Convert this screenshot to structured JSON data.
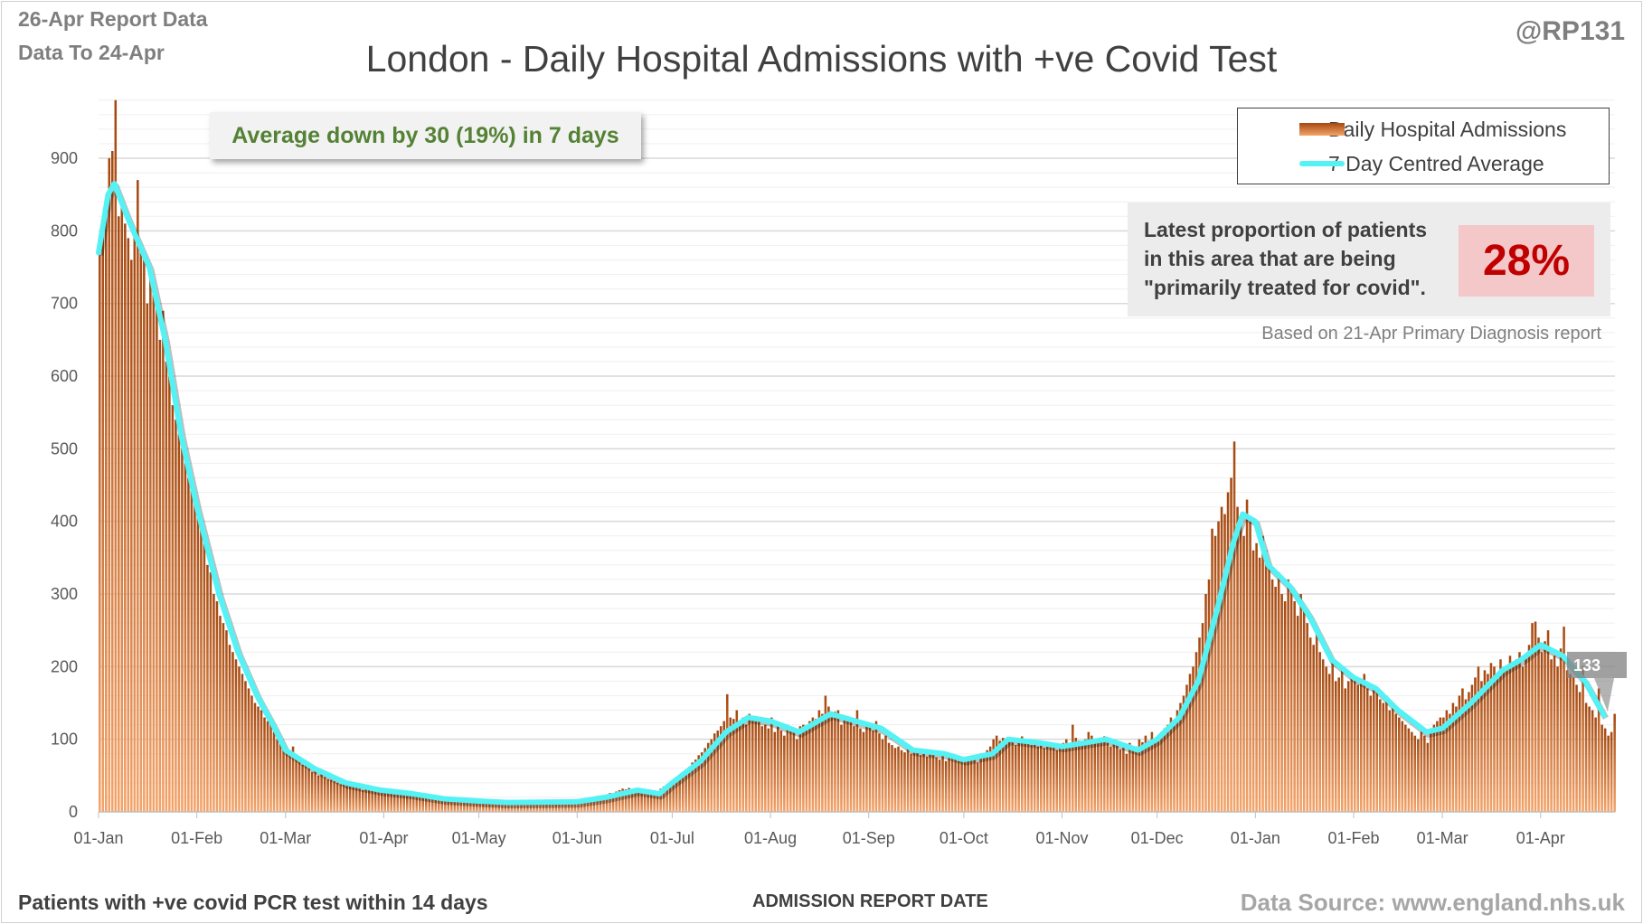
{
  "header": {
    "report_line": "26-Apr Report Data",
    "data_line": "Data To 24-Apr",
    "handle": "@RP131"
  },
  "avg_callout": "Average down by 30 (19%) in 7 days",
  "proportion": {
    "text": "Latest proportion of patients in this area that are being \"primarily treated for covid\".",
    "value": "28%",
    "note": "Based on 21-Apr Primary Diagnosis report"
  },
  "footer": {
    "left": "Patients with +ve covid PCR test within 14 days",
    "source": "Data Source: www.england.nhs.uk"
  },
  "colors": {
    "bars_top": "#a5480f",
    "bars_bottom": "#f4a46a",
    "average_line": "#55f2f5",
    "callout_text": "#548235",
    "percent_text": "#c00000",
    "percent_bg": "#f4c7c9"
  },
  "chart_data": {
    "type": "bar",
    "title": "London - Daily Hospital Admissions with +ve Covid Test",
    "xlabel": "ADMISSION  REPORT DATE",
    "ylabel": "",
    "ylim": [
      0,
      980
    ],
    "yticks": [
      0,
      100,
      200,
      300,
      400,
      500,
      600,
      700,
      800,
      900
    ],
    "grid": true,
    "legend_placement": "top-right",
    "x_start": "2021-01-01",
    "x_end": "2022-04-24",
    "xticks": [
      {
        "date": "2021-01-01",
        "label": "01-Jan"
      },
      {
        "date": "2021-02-01",
        "label": "01-Feb"
      },
      {
        "date": "2021-03-01",
        "label": "01-Mar"
      },
      {
        "date": "2021-04-01",
        "label": "01-Apr"
      },
      {
        "date": "2021-05-01",
        "label": "01-May"
      },
      {
        "date": "2021-06-01",
        "label": "01-Jun"
      },
      {
        "date": "2021-07-01",
        "label": "01-Jul"
      },
      {
        "date": "2021-08-01",
        "label": "01-Aug"
      },
      {
        "date": "2021-09-01",
        "label": "01-Sep"
      },
      {
        "date": "2021-10-01",
        "label": "01-Oct"
      },
      {
        "date": "2021-11-01",
        "label": "01-Nov"
      },
      {
        "date": "2021-12-01",
        "label": "01-Dec"
      },
      {
        "date": "2022-01-01",
        "label": "01-Jan"
      },
      {
        "date": "2022-02-01",
        "label": "01-Feb"
      },
      {
        "date": "2022-03-01",
        "label": "01-Mar"
      },
      {
        "date": "2022-04-01",
        "label": "01-Apr"
      }
    ],
    "series": [
      {
        "name": "Daily Hospital Admissions",
        "kind": "bar",
        "start_date": "2021-01-01",
        "values": [
          780,
          800,
          840,
          900,
          910,
          980,
          820,
          840,
          810,
          790,
          760,
          800,
          870,
          780,
          760,
          700,
          740,
          730,
          700,
          650,
          690,
          620,
          600,
          560,
          540,
          520,
          500,
          480,
          460,
          450,
          430,
          420,
          390,
          370,
          340,
          330,
          300,
          290,
          270,
          260,
          250,
          230,
          220,
          210,
          200,
          190,
          180,
          170,
          160,
          150,
          145,
          140,
          130,
          125,
          120,
          110,
          100,
          95,
          90,
          85,
          80,
          90,
          75,
          70,
          65,
          70,
          60,
          55,
          58,
          50,
          52,
          48,
          45,
          44,
          42,
          40,
          38,
          40,
          36,
          35,
          34,
          33,
          32,
          30,
          31,
          30,
          29,
          28,
          30,
          27,
          26,
          28,
          25,
          24,
          27,
          25,
          24,
          22,
          23,
          26,
          21,
          22,
          20,
          19,
          21,
          20,
          18,
          19,
          17,
          18,
          16,
          17,
          15,
          16,
          17,
          15,
          14,
          16,
          15,
          14,
          15,
          13,
          14,
          12,
          13,
          14,
          12,
          13,
          11,
          12,
          13,
          14,
          12,
          13,
          14,
          13,
          12,
          14,
          13,
          15,
          14,
          13,
          14,
          15,
          13,
          14,
          16,
          15,
          14,
          16,
          17,
          16,
          18,
          17,
          19,
          18,
          20,
          22,
          21,
          23,
          24,
          26,
          25,
          28,
          30,
          32,
          31,
          33,
          30,
          29,
          28,
          27,
          30,
          26,
          25,
          27,
          28,
          32,
          35,
          38,
          40,
          42,
          45,
          50,
          55,
          58,
          62,
          68,
          72,
          78,
          82,
          88,
          95,
          100,
          108,
          112,
          118,
          125,
          162,
          130,
          128,
          140,
          125,
          130,
          120,
          135,
          128,
          132,
          125,
          118,
          120,
          115,
          130,
          110,
          118,
          112,
          105,
          120,
          115,
          110,
          100,
          118,
          120,
          112,
          125,
          130,
          128,
          140,
          135,
          160,
          145,
          130,
          138,
          140,
          120,
          132,
          128,
          125,
          118,
          140,
          115,
          110,
          120,
          118,
          112,
          125,
          108,
          100,
          105,
          95,
          92,
          88,
          90,
          85,
          82,
          88,
          80,
          85,
          82,
          78,
          80,
          76,
          84,
          80,
          75,
          72,
          78,
          70,
          74,
          80,
          72,
          70,
          75,
          72,
          70,
          76,
          74,
          68,
          80,
          78,
          85,
          90,
          100,
          105,
          98,
          102,
          95,
          100,
          98,
          92,
          96,
          104,
          95,
          100,
          92,
          98,
          90,
          95,
          88,
          92,
          96,
          90,
          85,
          92,
          95,
          100,
          88,
          120,
          102,
          98,
          95,
          100,
          110,
          105,
          96,
          100,
          98,
          104,
          95,
          90,
          100,
          92,
          86,
          90,
          80,
          95,
          85,
          90,
          100,
          96,
          105,
          98,
          110,
          100,
          105,
          110,
          115,
          120,
          130,
          125,
          140,
          150,
          160,
          175,
          190,
          200,
          220,
          240,
          260,
          300,
          320,
          390,
          380,
          400,
          420,
          410,
          440,
          460,
          510,
          420,
          400,
          380,
          430,
          400,
          360,
          370,
          350,
          380,
          360,
          340,
          320,
          310,
          330,
          300,
          290,
          320,
          310,
          290,
          270,
          300,
          280,
          260,
          240,
          230,
          250,
          220,
          210,
          200,
          190,
          210,
          180,
          185,
          200,
          170,
          180,
          190,
          185,
          175,
          180,
          190,
          170,
          160,
          175,
          165,
          155,
          150,
          160,
          140,
          145,
          135,
          130,
          125,
          120,
          115,
          110,
          105,
          100,
          110,
          105,
          95,
          115,
          120,
          125,
          130,
          130,
          140,
          135,
          150,
          145,
          160,
          170,
          155,
          165,
          175,
          185,
          200,
          180,
          195,
          190,
          205,
          200,
          185,
          210,
          195,
          200,
          215,
          205,
          210,
          220,
          200,
          215,
          230,
          260,
          262,
          240,
          220,
          235,
          250,
          210,
          215,
          200,
          225,
          255,
          195,
          190,
          185,
          175,
          165,
          200,
          150,
          145,
          140,
          130,
          170,
          120,
          115,
          105,
          110,
          135
        ]
      },
      {
        "name": "7 Day Centred Average",
        "kind": "line",
        "points": [
          [
            "2021-01-01",
            770
          ],
          [
            "2021-01-04",
            850
          ],
          [
            "2021-01-06",
            865
          ],
          [
            "2021-01-10",
            820
          ],
          [
            "2021-01-17",
            750
          ],
          [
            "2021-01-22",
            650
          ],
          [
            "2021-01-27",
            520
          ],
          [
            "2021-02-01",
            420
          ],
          [
            "2021-02-08",
            300
          ],
          [
            "2021-02-14",
            220
          ],
          [
            "2021-02-20",
            160
          ],
          [
            "2021-02-25",
            120
          ],
          [
            "2021-03-01",
            85
          ],
          [
            "2021-03-10",
            60
          ],
          [
            "2021-03-20",
            40
          ],
          [
            "2021-03-31",
            30
          ],
          [
            "2021-04-10",
            25
          ],
          [
            "2021-04-20",
            18
          ],
          [
            "2021-05-01",
            15
          ],
          [
            "2021-05-10",
            13
          ],
          [
            "2021-06-01",
            14
          ],
          [
            "2021-06-10",
            20
          ],
          [
            "2021-06-20",
            30
          ],
          [
            "2021-06-27",
            25
          ],
          [
            "2021-07-01",
            40
          ],
          [
            "2021-07-10",
            70
          ],
          [
            "2021-07-18",
            110
          ],
          [
            "2021-07-25",
            130
          ],
          [
            "2021-08-01",
            125
          ],
          [
            "2021-08-10",
            110
          ],
          [
            "2021-08-20",
            135
          ],
          [
            "2021-08-28",
            125
          ],
          [
            "2021-09-05",
            115
          ],
          [
            "2021-09-15",
            85
          ],
          [
            "2021-09-25",
            80
          ],
          [
            "2021-10-01",
            72
          ],
          [
            "2021-10-10",
            80
          ],
          [
            "2021-10-15",
            100
          ],
          [
            "2021-10-25",
            95
          ],
          [
            "2021-11-01",
            90
          ],
          [
            "2021-11-15",
            100
          ],
          [
            "2021-11-25",
            85
          ],
          [
            "2021-12-01",
            100
          ],
          [
            "2021-12-08",
            130
          ],
          [
            "2021-12-14",
            180
          ],
          [
            "2021-12-20",
            280
          ],
          [
            "2021-12-25",
            370
          ],
          [
            "2021-12-28",
            410
          ],
          [
            "2022-01-01",
            400
          ],
          [
            "2022-01-05",
            340
          ],
          [
            "2022-01-12",
            310
          ],
          [
            "2022-01-18",
            270
          ],
          [
            "2022-01-25",
            210
          ],
          [
            "2022-02-01",
            185
          ],
          [
            "2022-02-08",
            170
          ],
          [
            "2022-02-15",
            140
          ],
          [
            "2022-02-24",
            110
          ],
          [
            "2022-03-01",
            115
          ],
          [
            "2022-03-10",
            150
          ],
          [
            "2022-03-20",
            195
          ],
          [
            "2022-03-26",
            210
          ],
          [
            "2022-04-01",
            230
          ],
          [
            "2022-04-08",
            215
          ],
          [
            "2022-04-15",
            180
          ],
          [
            "2022-04-21",
            133
          ]
        ]
      }
    ],
    "annotations": [
      {
        "date": "2022-04-21",
        "label": "133"
      }
    ]
  }
}
